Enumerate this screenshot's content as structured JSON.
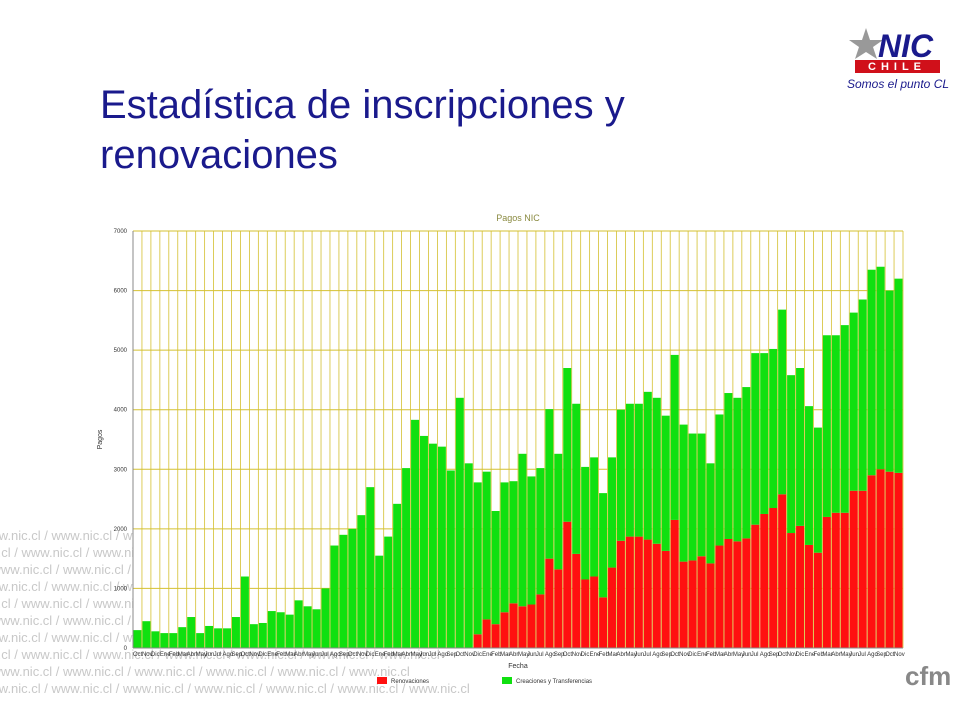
{
  "slide_title": "Estadística de inscripciones y renovaciones",
  "logo": {
    "name": "NIC",
    "sub": "CHILE",
    "tagline": "Somos el punto CL"
  },
  "watermark": "www.nic.cl / www.nic.cl / www.nic.cl / www.nic.cl / www.nic.cl / www.nic.cl / www.nic.cl",
  "badge": "cfm",
  "chart_data": {
    "type": "stacked_bar",
    "title": "Pagos NIC",
    "x_label": "Fecha",
    "y_label": "Pagos",
    "categories": [
      "Oct",
      "Nov",
      "Dic",
      "Ene",
      "Feb",
      "Mar",
      "Abr",
      "May",
      "Jun",
      "Jul",
      "Ago",
      "Sep",
      "Oct",
      "Nov",
      "Dic",
      "Ene",
      "Feb",
      "Mar",
      "Abr",
      "May",
      "Jun",
      "Jul",
      "Ago",
      "Sep",
      "Oct",
      "Nov",
      "Dic",
      "Ene",
      "Feb",
      "Mar",
      "Abr",
      "May",
      "Jun",
      "Jul",
      "Ago",
      "Sep",
      "Oct",
      "Nov",
      "Dic",
      "Ene",
      "Feb",
      "Mar",
      "Abr",
      "May",
      "Jun",
      "Jul",
      "Ago",
      "Sep",
      "Oct",
      "Nov",
      "Dic",
      "Ene",
      "Feb",
      "Mar",
      "Abr",
      "May",
      "Jun",
      "Jul",
      "Ago",
      "Sep",
      "Oct",
      "Nov",
      "Dic",
      "Ene",
      "Feb",
      "Mar",
      "Abr",
      "May",
      "Jun",
      "Jul",
      "Ago",
      "Sep",
      "Oct",
      "Nov",
      "Dic",
      "Ene",
      "Feb",
      "Mar",
      "Abr",
      "May",
      "Jun",
      "Jul",
      "Ago",
      "Sep",
      "Oct",
      "Nov"
    ],
    "series": [
      {
        "name": "Renovaciones",
        "color": "#ff1010",
        "values": [
          0,
          0,
          0,
          0,
          0,
          0,
          0,
          0,
          0,
          0,
          0,
          0,
          0,
          0,
          0,
          0,
          0,
          0,
          0,
          0,
          0,
          0,
          0,
          0,
          0,
          0,
          0,
          0,
          0,
          0,
          0,
          0,
          0,
          0,
          0,
          0,
          0,
          0,
          230,
          480,
          400,
          600,
          750,
          700,
          730,
          900,
          1500,
          1320,
          2120,
          1580,
          1150,
          1200,
          850,
          1350,
          1800,
          1870,
          1870,
          1820,
          1750,
          1630,
          2150,
          1450,
          1470,
          1540,
          1420,
          1720,
          1830,
          1790,
          1840,
          2070,
          2250,
          2350,
          2580,
          1930,
          2050,
          1730,
          1600,
          2200,
          2270,
          2270,
          2640,
          2640,
          2900,
          3000,
          2960,
          2940
        ]
      },
      {
        "name": "Creaciones y Transferencias",
        "color": "#10e010",
        "values": [
          300,
          450,
          280,
          250,
          250,
          350,
          520,
          250,
          370,
          330,
          330,
          520,
          1200,
          400,
          420,
          620,
          600,
          560,
          800,
          700,
          650,
          1000,
          1720,
          1900,
          2000,
          2230,
          2700,
          1550,
          1870,
          2420,
          3020,
          3830,
          3560,
          3430,
          3380,
          2980,
          4200,
          3100,
          2550,
          2480,
          1900,
          2180,
          2050,
          2560,
          2150,
          2120,
          2510,
          1940,
          2580,
          2520,
          1890,
          2000,
          1750,
          1850,
          2200,
          2230,
          2230,
          2480,
          2450,
          2270,
          2770,
          2300,
          2130,
          2060,
          1680,
          2200,
          2450,
          2410,
          2540,
          2880,
          2700,
          2670,
          3100,
          2650,
          2650,
          2330,
          2100,
          3050,
          2980,
          3150,
          2990,
          3210,
          3450,
          3400,
          3040,
          3260
        ]
      }
    ],
    "ylim": [
      0,
      7000
    ],
    "yticks": [
      0,
      1000,
      2000,
      3000,
      4000,
      5000,
      6000,
      7000
    ],
    "grid": true,
    "grid_color": "#d4c030",
    "legend": "bottom"
  }
}
